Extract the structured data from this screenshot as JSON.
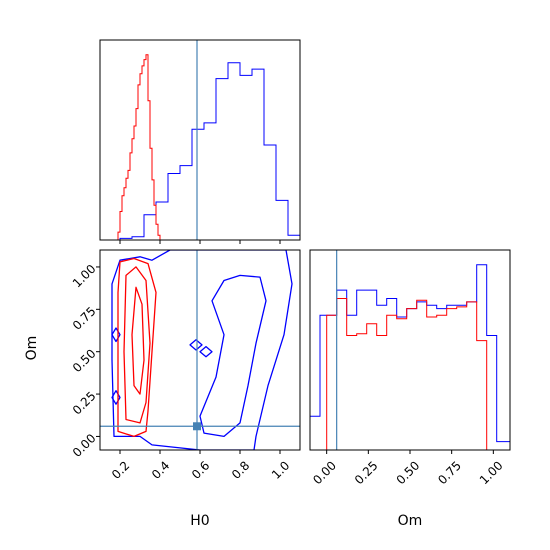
{
  "chart_data": {
    "type": "corner",
    "parameters": [
      "H0",
      "Om"
    ],
    "truth": {
      "H0": 0.585,
      "Om": 0.06
    },
    "truth_color": "#4682b4",
    "series": [
      {
        "color": "#ff0000"
      },
      {
        "color": "#0000ff"
      }
    ],
    "h0_hist": {
      "xlim": [
        0.1,
        1.1
      ],
      "bin_edges": [
        0.1,
        0.11,
        0.12,
        0.13,
        0.14,
        0.15,
        0.16,
        0.17,
        0.18,
        0.19,
        0.2,
        0.21,
        0.22,
        0.23,
        0.24,
        0.25,
        0.26,
        0.27,
        0.28,
        0.29,
        0.3,
        0.31,
        0.32,
        0.33,
        0.34,
        0.35,
        0.36,
        0.37,
        0.38,
        0.39,
        0.4,
        0.41
      ],
      "red_counts": [
        0,
        0,
        0,
        0,
        0,
        0,
        0,
        0,
        0,
        5,
        18,
        28,
        33,
        39,
        44,
        55,
        64,
        72,
        83,
        98,
        105,
        110,
        114,
        117,
        88,
        58,
        38,
        22,
        10,
        3,
        0
      ],
      "blue_edges": [
        0.2,
        0.26,
        0.32,
        0.38,
        0.44,
        0.5,
        0.56,
        0.62,
        0.68,
        0.74,
        0.8,
        0.86,
        0.92,
        0.98,
        1.04,
        1.1
      ],
      "blue_counts": [
        1,
        2,
        16,
        24,
        42,
        47,
        70,
        74,
        102,
        112,
        104,
        108,
        60,
        25,
        3
      ]
    },
    "om_hist": {
      "xlim": [
        -0.1,
        1.1
      ],
      "red_edges": [
        0.0,
        0.06,
        0.12,
        0.18,
        0.24,
        0.3,
        0.36,
        0.42,
        0.48,
        0.54,
        0.6,
        0.66,
        0.72,
        0.78,
        0.84,
        0.9,
        0.96,
        1.0
      ],
      "red_counts": [
        80,
        90,
        68,
        69,
        75,
        68,
        80,
        78,
        84,
        89,
        79,
        80,
        84,
        85,
        88,
        65,
        0
      ],
      "blue_edges": [
        -0.1,
        -0.04,
        0.0,
        0.06,
        0.12,
        0.18,
        0.24,
        0.3,
        0.36,
        0.42,
        0.48,
        0.54,
        0.6,
        0.66,
        0.72,
        0.78,
        0.84,
        0.9,
        0.96,
        1.02,
        1.06,
        1.1
      ],
      "blue_counts": [
        20,
        80,
        80,
        95,
        80,
        95,
        95,
        86,
        90,
        79,
        84,
        88,
        86,
        84,
        86,
        86,
        88,
        110,
        68,
        5,
        5
      ]
    },
    "joint": {
      "xlim": [
        0.1,
        1.1
      ],
      "ylim": [
        -0.08,
        1.1
      ],
      "red_contours": [
        [
          [
            0.19,
            0.03
          ],
          [
            0.19,
            0.4
          ],
          [
            0.19,
            0.85
          ],
          [
            0.2,
            1.03
          ],
          [
            0.27,
            1.05
          ],
          [
            0.34,
            1.02
          ],
          [
            0.38,
            0.85
          ],
          [
            0.36,
            0.5
          ],
          [
            0.34,
            0.15
          ],
          [
            0.33,
            0.03
          ],
          [
            0.27,
            0.0
          ],
          [
            0.19,
            0.03
          ]
        ],
        [
          [
            0.23,
            0.1
          ],
          [
            0.22,
            0.5
          ],
          [
            0.23,
            0.95
          ],
          [
            0.28,
            1.0
          ],
          [
            0.33,
            0.92
          ],
          [
            0.35,
            0.55
          ],
          [
            0.33,
            0.2
          ],
          [
            0.3,
            0.08
          ],
          [
            0.23,
            0.1
          ]
        ],
        [
          [
            0.27,
            0.3
          ],
          [
            0.26,
            0.6
          ],
          [
            0.28,
            0.88
          ],
          [
            0.31,
            0.78
          ],
          [
            0.32,
            0.45
          ],
          [
            0.3,
            0.25
          ],
          [
            0.27,
            0.3
          ]
        ]
      ],
      "blue_contours": [
        [
          [
            0.17,
            0.0
          ],
          [
            0.16,
            0.45
          ],
          [
            0.16,
            0.9
          ],
          [
            0.2,
            1.04
          ],
          [
            0.3,
            1.06
          ],
          [
            0.36,
            1.04
          ],
          [
            0.45,
            1.1
          ],
          [
            0.6,
            1.1
          ],
          [
            0.92,
            1.1
          ],
          [
            1.03,
            1.1
          ],
          [
            1.06,
            0.9
          ],
          [
            1.02,
            0.6
          ],
          [
            0.94,
            0.3
          ],
          [
            0.88,
            0.0
          ],
          [
            0.87,
            -0.08
          ],
          [
            0.6,
            -0.08
          ],
          [
            0.36,
            -0.05
          ],
          [
            0.3,
            0.0
          ],
          [
            0.17,
            0.0
          ]
        ],
        [
          [
            0.62,
            0.02
          ],
          [
            0.6,
            0.12
          ],
          [
            0.68,
            0.35
          ],
          [
            0.72,
            0.6
          ],
          [
            0.66,
            0.8
          ],
          [
            0.72,
            0.92
          ],
          [
            0.8,
            0.95
          ],
          [
            0.9,
            0.94
          ],
          [
            0.93,
            0.8
          ],
          [
            0.88,
            0.55
          ],
          [
            0.84,
            0.3
          ],
          [
            0.8,
            0.08
          ],
          [
            0.72,
            0.0
          ],
          [
            0.62,
            0.02
          ]
        ],
        [
          [
            0.16,
            0.6
          ],
          [
            0.18,
            0.64
          ],
          [
            0.2,
            0.6
          ],
          [
            0.18,
            0.56
          ],
          [
            0.16,
            0.6
          ]
        ],
        [
          [
            0.16,
            0.23
          ],
          [
            0.18,
            0.27
          ],
          [
            0.2,
            0.23
          ],
          [
            0.18,
            0.19
          ],
          [
            0.16,
            0.23
          ]
        ],
        [
          [
            0.55,
            0.54
          ],
          [
            0.58,
            0.57
          ],
          [
            0.61,
            0.54
          ],
          [
            0.58,
            0.51
          ],
          [
            0.55,
            0.54
          ]
        ],
        [
          [
            0.6,
            0.5
          ],
          [
            0.63,
            0.53
          ],
          [
            0.66,
            0.5
          ],
          [
            0.63,
            0.47
          ],
          [
            0.6,
            0.5
          ]
        ]
      ]
    },
    "h0_ticks": [
      0.2,
      0.4,
      0.6,
      0.8,
      1.0
    ],
    "om_ticks": [
      0.0,
      0.25,
      0.5,
      0.75,
      1.0
    ],
    "h0_tick_labels": [
      "0.2",
      "0.4",
      "0.6",
      "0.8",
      "1.0"
    ],
    "om_tick_labels": [
      "0.00",
      "0.25",
      "0.50",
      "0.75",
      "1.00"
    ],
    "xlabel_h0": "H0",
    "xlabel_om": "Om",
    "ylabel_om": "Om"
  }
}
